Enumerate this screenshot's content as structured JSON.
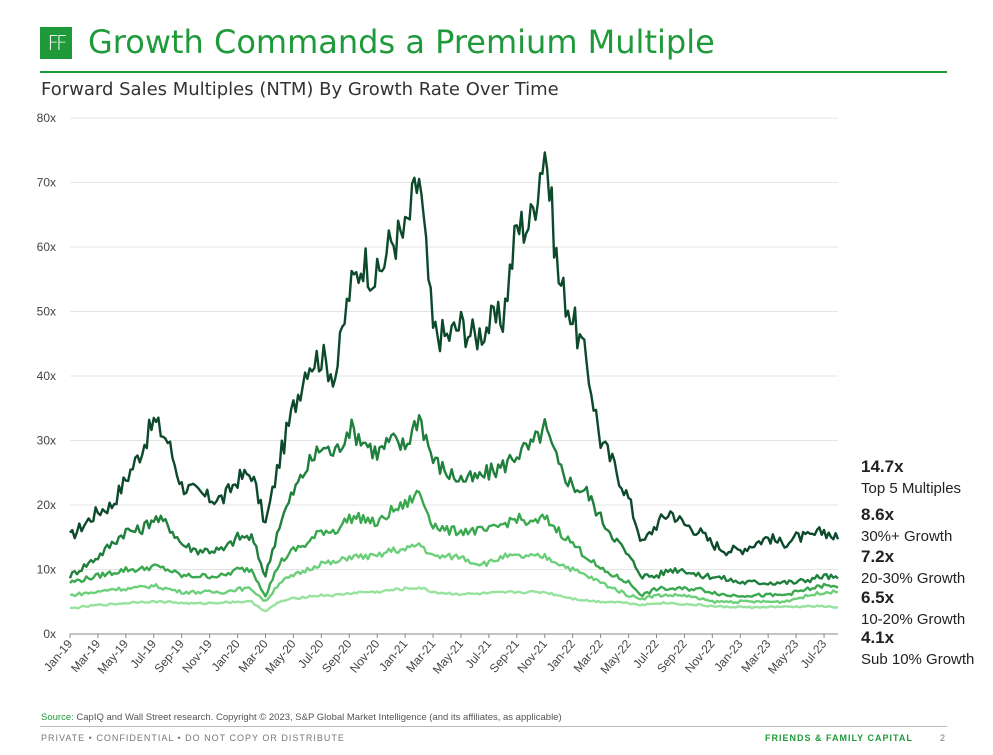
{
  "header": {
    "logo_text": "FF",
    "title": "Growth Commands a Premium Multiple",
    "subtitle": "Forward Sales Multiples (NTM) By Growth Rate Over Time"
  },
  "colors": {
    "brand_green": "#1f9a3a",
    "top5": "#0d4a2c",
    "g30plus": "#1f7f3c",
    "g20_30": "#3aa84e",
    "g10_20": "#6ccf7a",
    "sub10": "#98e2a0"
  },
  "chart_data": {
    "type": "line",
    "title": "Forward Sales Multiples (NTM) By Growth Rate Over Time",
    "xlabel": "",
    "ylabel": "",
    "ylim": [
      0,
      80
    ],
    "yticks": [
      "0x",
      "10x",
      "20x",
      "30x",
      "40x",
      "50x",
      "60x",
      "70x",
      "80x"
    ],
    "xticks": [
      "Jan-19",
      "Mar-19",
      "May-19",
      "Jul-19",
      "Sep-19",
      "Nov-19",
      "Jan-20",
      "Mar-20",
      "May-20",
      "Jul-20",
      "Sep-20",
      "Nov-20",
      "Jan-21",
      "Mar-21",
      "May-21",
      "Jul-21",
      "Sep-21",
      "Nov-21",
      "Jan-22",
      "Mar-22",
      "May-22",
      "Jul-22",
      "Sep-22",
      "Nov-22",
      "Jan-23",
      "Mar-23",
      "May-23",
      "Jul-23"
    ],
    "grid": true,
    "x": [
      "Jan-19",
      "Feb-19",
      "Mar-19",
      "Apr-19",
      "May-19",
      "Jun-19",
      "Jul-19",
      "Aug-19",
      "Sep-19",
      "Oct-19",
      "Nov-19",
      "Dec-19",
      "Jan-20",
      "Feb-20",
      "Mar-20",
      "Apr-20",
      "May-20",
      "Jun-20",
      "Jul-20",
      "Aug-20",
      "Sep-20",
      "Oct-20",
      "Nov-20",
      "Dec-20",
      "Jan-21",
      "Feb-21",
      "Mar-21",
      "Apr-21",
      "May-21",
      "Jun-21",
      "Jul-21",
      "Aug-21",
      "Sep-21",
      "Oct-21",
      "Nov-21",
      "Dec-21",
      "Jan-22",
      "Feb-22",
      "Mar-22",
      "Apr-22",
      "May-22",
      "Jun-22",
      "Jul-22",
      "Aug-22",
      "Sep-22",
      "Oct-22",
      "Nov-22",
      "Dec-22",
      "Jan-23",
      "Feb-23",
      "Mar-23",
      "Apr-23",
      "May-23",
      "Jun-23",
      "Jul-23",
      "Aug-23"
    ],
    "series": [
      {
        "name": "Top 5 Multiples",
        "color": "#0d4a2c",
        "end_value": "14.7x",
        "values": [
          15,
          17,
          19,
          20,
          24,
          28,
          33,
          30,
          23,
          22,
          21,
          21,
          24,
          25,
          17,
          27,
          35,
          42,
          43,
          40,
          53,
          58,
          55,
          61,
          62,
          71,
          47,
          46,
          48,
          46,
          48,
          49,
          63,
          64,
          76,
          55,
          49,
          42,
          30,
          26,
          21,
          14,
          17,
          19,
          17,
          16,
          14,
          13,
          13,
          14,
          15,
          14,
          15,
          15,
          16,
          14.7
        ]
      },
      {
        "name": "30%+ Growth",
        "color": "#1f7f3c",
        "end_value": "8.6x",
        "values": [
          9,
          10.5,
          12,
          14,
          16,
          16,
          18,
          17,
          14,
          13,
          13,
          13,
          15,
          15,
          9,
          17,
          22,
          26,
          29,
          28,
          32,
          30,
          28,
          30,
          29,
          34,
          27,
          25,
          24,
          24,
          25,
          26,
          28,
          29,
          32,
          26,
          23,
          22,
          18,
          15,
          12,
          9,
          9,
          10,
          10,
          9,
          9,
          8.5,
          8,
          8,
          8,
          8,
          8,
          8.5,
          9,
          8.6
        ]
      },
      {
        "name": "20-30% Growth",
        "color": "#3aa84e",
        "end_value": "7.2x",
        "values": [
          8,
          8.5,
          9,
          9.5,
          10,
          10,
          10.5,
          10,
          9,
          9,
          9,
          9,
          10,
          10,
          6,
          11,
          13,
          14,
          16,
          16,
          18,
          18,
          17,
          19,
          20,
          22,
          17,
          16,
          16,
          16,
          16,
          17,
          18,
          17,
          18,
          16,
          14,
          12,
          10,
          9,
          8,
          6,
          7,
          7,
          7,
          7,
          6.5,
          6,
          6,
          6,
          6,
          6,
          6.5,
          7,
          7.5,
          7.2
        ]
      },
      {
        "name": "10-20% Growth",
        "color": "#6ccf7a",
        "end_value": "6.5x",
        "values": [
          6,
          6.3,
          6.5,
          7,
          7,
          7.2,
          7.5,
          7,
          6.5,
          6.5,
          6.5,
          6.5,
          7,
          7,
          5,
          8,
          9,
          10,
          11,
          11,
          12,
          12,
          12,
          13,
          13,
          14,
          12,
          12,
          12,
          11,
          11,
          12,
          12,
          12,
          12,
          11,
          10,
          9,
          8,
          7,
          6,
          5.5,
          6,
          6,
          6,
          5.5,
          5,
          5,
          5,
          5,
          5,
          5,
          5.5,
          6,
          6.5,
          6.5
        ]
      },
      {
        "name": "Sub 10% Growth",
        "color": "#98e2a0",
        "end_value": "4.1x",
        "values": [
          4,
          4.2,
          4.5,
          4.6,
          4.8,
          5,
          5,
          5,
          4.8,
          4.7,
          4.8,
          4.9,
          5,
          5,
          3.5,
          5,
          5.5,
          5.8,
          6,
          6,
          6.3,
          6.5,
          6.5,
          6.8,
          7,
          7.2,
          6.5,
          6.3,
          6.2,
          6.2,
          6.3,
          6.4,
          6.5,
          6.5,
          6.5,
          6,
          5.5,
          5.2,
          5,
          5,
          4.8,
          4.5,
          4.8,
          4.8,
          4.6,
          4.5,
          4.3,
          4.2,
          4.2,
          4.1,
          4.2,
          4.2,
          4.2,
          4.3,
          4.3,
          4.1
        ]
      }
    ]
  },
  "source": {
    "label": "Source:",
    "text": " CapIQ and Wall Street research. Copyright © 2023, S&P Global Market Intelligence (and its affiliates, as applicable)"
  },
  "footer": {
    "left": "PRIVATE • CONFIDENTIAL • DO NOT COPY OR DISTRIBUTE",
    "right": "FRIENDS & FAMILY CAPITAL",
    "page": "2"
  }
}
